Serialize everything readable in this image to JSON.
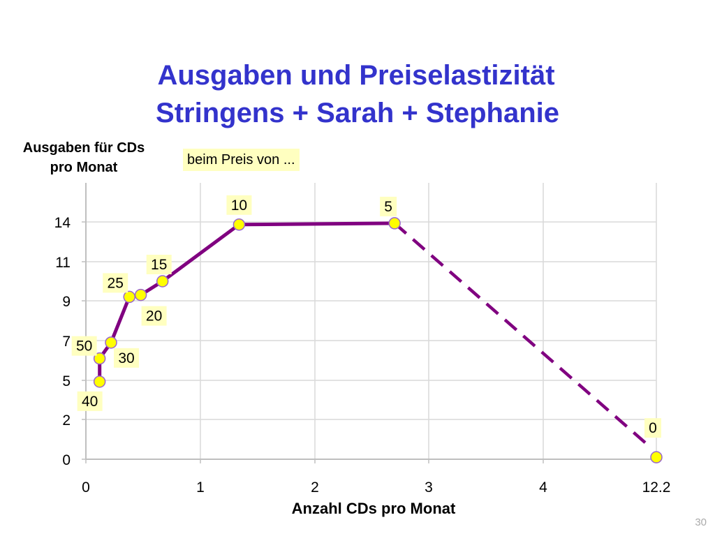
{
  "slide": {
    "title_line1": "Ausgaben und Preiselastizität",
    "title_line2": "Stringens + Sarah + Stephanie",
    "page_number": "30"
  },
  "chart_data": {
    "type": "line",
    "ylabel": "Ausgaben für CDs pro Monat",
    "xlabel": "Anzahl CDs pro Monat",
    "annotation": "beim Preis von ...",
    "x_ticks": [
      "0",
      "1",
      "2",
      "3",
      "4",
      "12.2"
    ],
    "y_ticks": [
      "0",
      "2",
      "5",
      "7",
      "9",
      "11",
      "14"
    ],
    "colors": {
      "line": "#800080",
      "marker": "#ffff00",
      "marker_border": "#9966cc",
      "label_bg": "#ffffc0",
      "grid": "#d9d9d9"
    },
    "points": [
      {
        "price": "40",
        "x": 0.12,
        "y": 4.9
      },
      {
        "price": "50",
        "x": 0.12,
        "y": 6.1
      },
      {
        "price": "30",
        "x": 0.22,
        "y": 6.9
      },
      {
        "price": "25",
        "x": 0.38,
        "y": 9.2
      },
      {
        "price": "20",
        "x": 0.48,
        "y": 9.3
      },
      {
        "price": "15",
        "x": 0.67,
        "y": 10.0
      },
      {
        "price": "10",
        "x": 1.34,
        "y": 13.8
      },
      {
        "price": "5",
        "x": 2.7,
        "y": 13.9
      },
      {
        "price": "0",
        "x": 12.2,
        "y": 0.1
      }
    ],
    "dashed_from_price": "5"
  }
}
